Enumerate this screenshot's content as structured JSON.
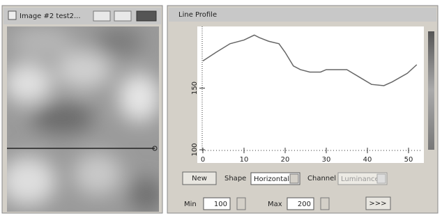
{
  "image_window": {
    "title": "Image #2  test2..."
  },
  "profile_window": {
    "title": "Line Profile"
  },
  "chart_data": {
    "type": "line",
    "x": [
      0,
      3.2,
      6.6,
      10,
      12.5,
      13.7,
      16,
      18.5,
      20,
      22,
      23.7,
      26,
      28.6,
      30,
      35,
      38,
      41,
      44,
      46,
      49.7,
      52
    ],
    "series": [
      {
        "color": "#666666",
        "values": [
          172,
          179,
          186,
          189,
          193,
          191,
          188,
          186,
          179,
          168,
          165,
          163,
          163,
          165,
          165,
          159,
          153,
          152,
          155,
          162,
          169
        ]
      }
    ],
    "xlim": [
      0,
      53
    ],
    "ylim": [
      100,
      200
    ],
    "xticks": [
      0,
      10,
      20,
      30,
      40,
      50
    ],
    "yticks": [
      100,
      150
    ]
  },
  "controls": {
    "new_button": "New",
    "shape_label": "Shape",
    "shape_value": "Horizontal",
    "channel_label": "Channel",
    "channel_value": "Luminance",
    "min_label": "Min",
    "min_value": 100,
    "max_label": "Max",
    "max_value": 200,
    "more_button": ">>>"
  }
}
